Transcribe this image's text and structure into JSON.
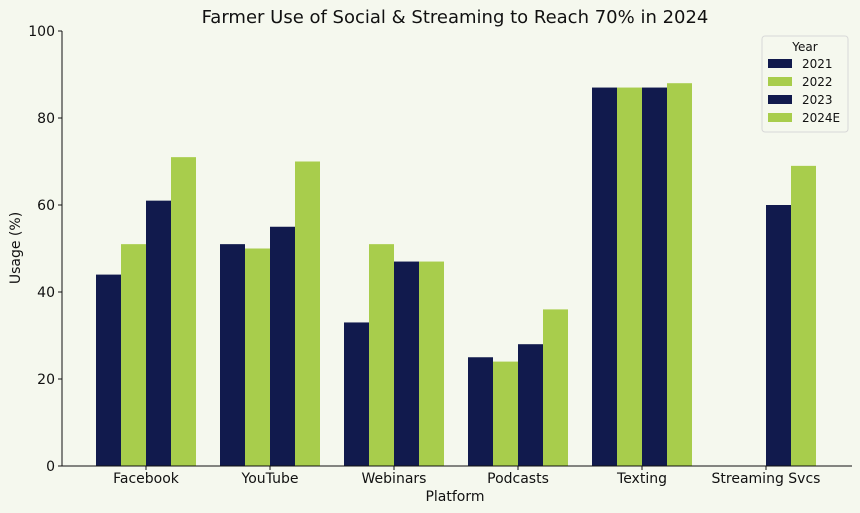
{
  "chart_data": {
    "type": "bar",
    "title": "Farmer Use of Social & Streaming to Reach 70% in 2024",
    "xlabel": "Platform",
    "ylabel": "Usage (%)",
    "ylim": [
      0,
      100
    ],
    "yticks": [
      0,
      20,
      40,
      60,
      80,
      100
    ],
    "categories": [
      "Facebook",
      "YouTube",
      "Webinars",
      "Podcasts",
      "Texting",
      "Streaming Svcs"
    ],
    "legend_title": "Year",
    "legend_position": "top-right",
    "grid": false,
    "series": [
      {
        "name": "2021",
        "color": "#111a4d",
        "values": [
          44,
          51,
          33,
          25,
          87,
          null
        ]
      },
      {
        "name": "2022",
        "color": "#a8cd4c",
        "values": [
          51,
          50,
          51,
          24,
          87,
          null
        ]
      },
      {
        "name": "2023",
        "color": "#111a4d",
        "values": [
          61,
          55,
          47,
          28,
          87,
          60
        ]
      },
      {
        "name": "2024E",
        "color": "#a8cd4c",
        "values": [
          71,
          70,
          47,
          36,
          88,
          69
        ]
      }
    ]
  }
}
